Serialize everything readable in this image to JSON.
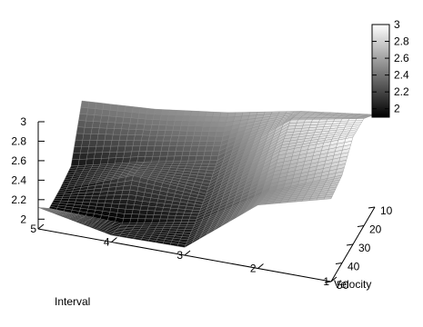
{
  "chart_data": {
    "type": "surface3d",
    "title": "",
    "x_axis": {
      "label": "Velocity",
      "ticks": [
        10,
        20,
        30,
        40,
        50
      ],
      "range": [
        10,
        50
      ]
    },
    "y_axis": {
      "label": "Interval",
      "ticks": [
        1,
        2,
        3,
        4,
        5
      ],
      "range": [
        1,
        5
      ]
    },
    "z_axis": {
      "label": "",
      "ticks": [
        "2",
        "2.2",
        "2.4",
        "2.6",
        "2.8",
        "3"
      ],
      "range": [
        1.9,
        3.0
      ]
    },
    "colorbar": {
      "ticks": [
        "2",
        "2.2",
        "2.4",
        "2.6",
        "2.8",
        "3"
      ],
      "range": [
        1.9,
        3.0
      ],
      "low_color": "#000000",
      "high_color": "#ffffff"
    },
    "velocity": [
      10,
      20,
      30,
      40,
      50
    ],
    "interval": [
      1,
      2,
      3,
      4,
      5
    ],
    "z": [
      [
        2.85,
        3.0,
        3.0,
        2.8,
        2.75
      ],
      [
        2.75,
        2.85,
        2.72,
        2.5,
        2.55
      ],
      [
        2.6,
        2.3,
        2.15,
        2.05,
        1.98
      ],
      [
        2.5,
        2.15,
        2.2,
        1.9,
        1.97
      ],
      [
        2.45,
        1.97,
        1.93,
        1.92,
        2.12
      ]
    ],
    "grid": false
  }
}
